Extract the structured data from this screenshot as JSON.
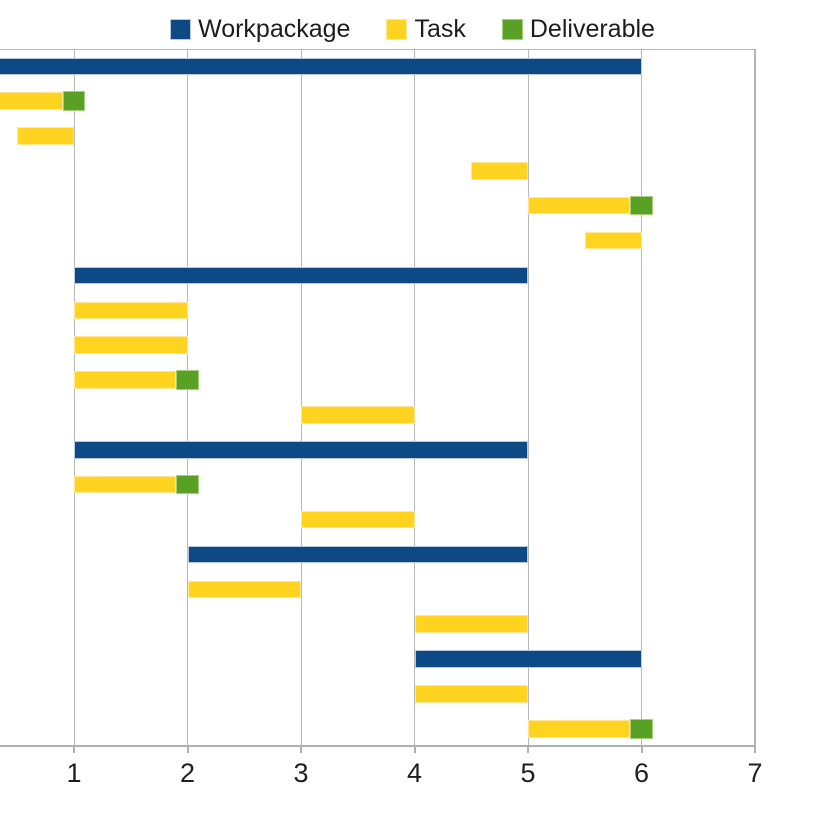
{
  "legend": {
    "items": [
      {
        "label": "Workpackage",
        "color": "#0d4a85",
        "border": "#b9c8da"
      },
      {
        "label": "Task",
        "color": "#ffd320",
        "border": "#ffe794"
      },
      {
        "label": "Deliverable",
        "color": "#58a125",
        "border": "#a5cd7a"
      }
    ]
  },
  "chart_data": {
    "type": "bar",
    "subtype": "gantt-horizontal",
    "title": "",
    "xlabel": "",
    "ylabel": "",
    "x_axis": {
      "ticks": [
        1,
        2,
        3,
        4,
        5,
        6,
        7
      ],
      "tick_labels": [
        "1",
        "2",
        "3",
        "4",
        "5",
        "6",
        "7"
      ],
      "min": 0,
      "max": 7,
      "visible_min": 0.35,
      "gridlines": true
    },
    "legend_position": "top",
    "left_edge_clipped": true,
    "series_colors": {
      "Workpackage": "#0d4a85",
      "Task": "#ffd320",
      "Deliverable": "#58a125"
    },
    "rows": [
      {
        "segments": [
          {
            "series": "Workpackage",
            "start": 0,
            "end": 6
          }
        ]
      },
      {
        "segments": [
          {
            "series": "Task",
            "start": 0,
            "end": 0.9
          },
          {
            "series": "Deliverable",
            "start": 0.9,
            "end": 1.1
          }
        ]
      },
      {
        "segments": [
          {
            "series": "Task",
            "start": 0.5,
            "end": 1
          }
        ]
      },
      {
        "segments": [
          {
            "series": "Task",
            "start": 4.5,
            "end": 5
          }
        ]
      },
      {
        "segments": [
          {
            "series": "Task",
            "start": 5,
            "end": 5.9
          },
          {
            "series": "Deliverable",
            "start": 5.9,
            "end": 6.1
          }
        ]
      },
      {
        "segments": [
          {
            "series": "Task",
            "start": 5.5,
            "end": 6
          }
        ]
      },
      {
        "segments": [
          {
            "series": "Workpackage",
            "start": 1,
            "end": 5
          }
        ]
      },
      {
        "segments": [
          {
            "series": "Task",
            "start": 1,
            "end": 2
          }
        ]
      },
      {
        "segments": [
          {
            "series": "Task",
            "start": 1,
            "end": 2
          }
        ]
      },
      {
        "segments": [
          {
            "series": "Task",
            "start": 1,
            "end": 1.9
          },
          {
            "series": "Deliverable",
            "start": 1.9,
            "end": 2.1
          }
        ]
      },
      {
        "segments": [
          {
            "series": "Task",
            "start": 3,
            "end": 4
          }
        ]
      },
      {
        "segments": [
          {
            "series": "Workpackage",
            "start": 1,
            "end": 5
          }
        ]
      },
      {
        "segments": [
          {
            "series": "Task",
            "start": 1,
            "end": 1.9
          },
          {
            "series": "Deliverable",
            "start": 1.9,
            "end": 2.1
          }
        ]
      },
      {
        "segments": [
          {
            "series": "Task",
            "start": 3,
            "end": 4
          }
        ]
      },
      {
        "segments": [
          {
            "series": "Workpackage",
            "start": 2,
            "end": 5
          }
        ]
      },
      {
        "segments": [
          {
            "series": "Task",
            "start": 2,
            "end": 3
          }
        ]
      },
      {
        "segments": [
          {
            "series": "Task",
            "start": 4,
            "end": 5
          }
        ]
      },
      {
        "segments": [
          {
            "series": "Workpackage",
            "start": 4,
            "end": 6
          }
        ]
      },
      {
        "segments": [
          {
            "series": "Task",
            "start": 4,
            "end": 5
          }
        ]
      },
      {
        "segments": [
          {
            "series": "Task",
            "start": 5,
            "end": 5.9
          },
          {
            "series": "Deliverable",
            "start": 5.9,
            "end": 6.1
          }
        ]
      }
    ],
    "style": {
      "gridline_color": "#b9b9b9",
      "axis_color": "#b0b0b0",
      "tick_label_color": "#1f1f1f",
      "background": "#ffffff"
    }
  }
}
